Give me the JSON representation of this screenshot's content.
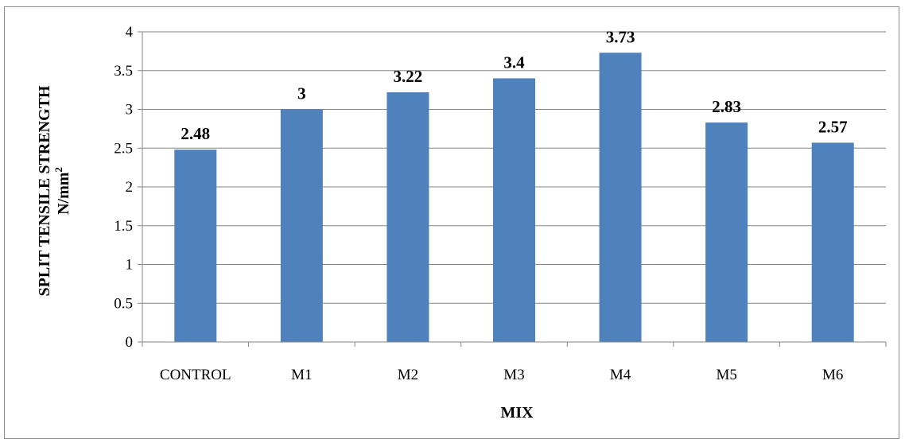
{
  "chart_data": {
    "type": "bar",
    "categories": [
      "CONTROL",
      "M1",
      "M2",
      "M3",
      "M4",
      "M5",
      "M6"
    ],
    "values": [
      2.48,
      3,
      3.22,
      3.4,
      3.73,
      2.83,
      2.57
    ],
    "data_labels": [
      "2.48",
      "3",
      "3.22",
      "3.4",
      "3.73",
      "2.83",
      "2.57"
    ],
    "y_ticks": [
      "0",
      "0.5",
      "1",
      "1.5",
      "2",
      "2.5",
      "3",
      "3.5",
      "4"
    ],
    "ylim": [
      0,
      4
    ],
    "xlabel": "MIX",
    "ylabel_line1": "SPLIT TENSILE  STRENGTH",
    "ylabel_line2": "N/mm",
    "ylabel_superscript": "2",
    "grid": true,
    "legend": "none",
    "bar_color": "#4f81bd",
    "gridline_color": "#868686"
  }
}
